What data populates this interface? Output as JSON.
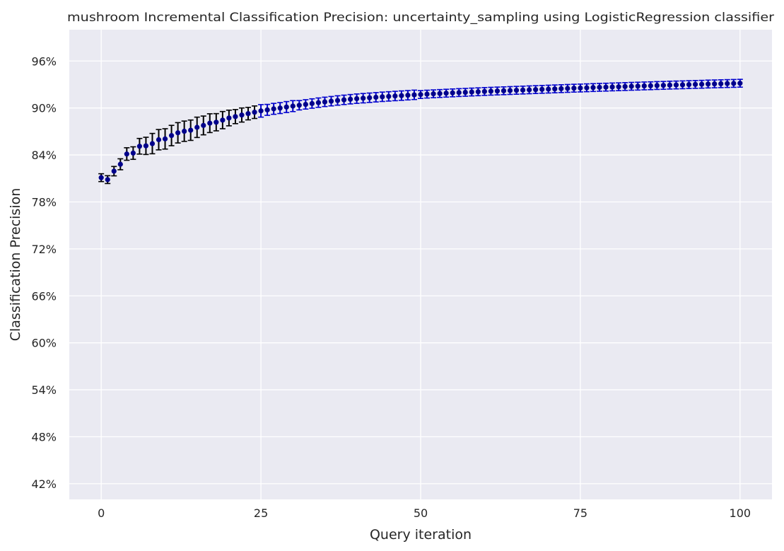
{
  "chart_data": {
    "type": "scatter",
    "title": "mushroom Incremental Classification Precision: uncertainty_sampling using LogisticRegression classifier",
    "xlabel": "Query iteration",
    "ylabel": "Classification Precision",
    "xlim": [
      -5,
      105
    ],
    "ylim": [
      0.4,
      1.0
    ],
    "x_ticks": [
      0,
      25,
      50,
      75,
      100
    ],
    "x_tick_labels": [
      "0",
      "25",
      "50",
      "75",
      "100"
    ],
    "y_ticks": [
      0.42,
      0.48,
      0.54,
      0.6,
      0.66,
      0.72,
      0.78,
      0.84,
      0.9,
      0.96
    ],
    "y_tick_labels": [
      "42%",
      "48%",
      "54%",
      "60%",
      "66%",
      "72%",
      "78%",
      "84%",
      "90%",
      "96%"
    ],
    "grid": true,
    "colors": {
      "background": "#eaeaf2",
      "grid": "#ffffff",
      "marker": "#00008b",
      "errorbar_early": "#000000",
      "errorbar_late": "#0000cd"
    },
    "series": [
      {
        "x": [
          0,
          1,
          2,
          3,
          4,
          5,
          6,
          7,
          8,
          9,
          10,
          11,
          12,
          13,
          14,
          15,
          16,
          17,
          18,
          19,
          20,
          21,
          22,
          23,
          24,
          25,
          26,
          27,
          28,
          29,
          30,
          31,
          32,
          33,
          34,
          35,
          36,
          37,
          38,
          39,
          40,
          41,
          42,
          43,
          44,
          45,
          46,
          47,
          48,
          49,
          50,
          51,
          52,
          53,
          54,
          55,
          56,
          57,
          58,
          59,
          60,
          61,
          62,
          63,
          64,
          65,
          66,
          67,
          68,
          69,
          70,
          71,
          72,
          73,
          74,
          75,
          76,
          77,
          78,
          79,
          80,
          81,
          82,
          83,
          84,
          85,
          86,
          87,
          88,
          89,
          90,
          91,
          92,
          93,
          94,
          95,
          96,
          97,
          98,
          99,
          100
        ],
        "y": [
          0.811,
          0.8085,
          0.8193,
          0.8281,
          0.8412,
          0.8424,
          0.8511,
          0.8516,
          0.8545,
          0.8595,
          0.8605,
          0.8648,
          0.8683,
          0.8703,
          0.8716,
          0.8753,
          0.8777,
          0.8806,
          0.8818,
          0.8845,
          0.8872,
          0.889,
          0.891,
          0.8928,
          0.8946,
          0.8963,
          0.8976,
          0.8989,
          0.8999,
          0.9012,
          0.9024,
          0.9035,
          0.9046,
          0.9057,
          0.9068,
          0.9078,
          0.9087,
          0.9096,
          0.9104,
          0.9112,
          0.9119,
          0.9125,
          0.9131,
          0.9137,
          0.9143,
          0.9148,
          0.9153,
          0.9158,
          0.9163,
          0.9168,
          0.9172,
          0.9177,
          0.9181,
          0.9185,
          0.9189,
          0.9193,
          0.9197,
          0.92,
          0.9204,
          0.9207,
          0.9211,
          0.9214,
          0.9217,
          0.922,
          0.9223,
          0.9226,
          0.9229,
          0.9232,
          0.9235,
          0.9238,
          0.9241,
          0.9244,
          0.9247,
          0.925,
          0.9253,
          0.9255,
          0.9258,
          0.9261,
          0.9264,
          0.9266,
          0.9269,
          0.9271,
          0.9274,
          0.9277,
          0.9279,
          0.9282,
          0.9284,
          0.9287,
          0.9289,
          0.9292,
          0.9294,
          0.9296,
          0.9299,
          0.9301,
          0.9303,
          0.9306,
          0.9308,
          0.931,
          0.9312,
          0.9314,
          0.9316
        ],
        "err": [
          0.005,
          0.005,
          0.006,
          0.007,
          0.008,
          0.008,
          0.01,
          0.011,
          0.013,
          0.013,
          0.013,
          0.013,
          0.013,
          0.013,
          0.013,
          0.013,
          0.012,
          0.012,
          0.011,
          0.011,
          0.01,
          0.009,
          0.009,
          0.008,
          0.008,
          0.008,
          0.007,
          0.007,
          0.007,
          0.007,
          0.007,
          0.006,
          0.006,
          0.006,
          0.006,
          0.006,
          0.006,
          0.006,
          0.006,
          0.006,
          0.006,
          0.006,
          0.006,
          0.006,
          0.006,
          0.006,
          0.006,
          0.006,
          0.006,
          0.006,
          0.005,
          0.005,
          0.005,
          0.005,
          0.005,
          0.005,
          0.005,
          0.005,
          0.005,
          0.005,
          0.005,
          0.005,
          0.005,
          0.005,
          0.005,
          0.005,
          0.005,
          0.005,
          0.005,
          0.005,
          0.005,
          0.005,
          0.005,
          0.005,
          0.005,
          0.005,
          0.005,
          0.005,
          0.005,
          0.005,
          0.005,
          0.005,
          0.005,
          0.005,
          0.005,
          0.005,
          0.005,
          0.005,
          0.005,
          0.005,
          0.005,
          0.005,
          0.005,
          0.005,
          0.005,
          0.005,
          0.005,
          0.005,
          0.005,
          0.005,
          0.005
        ]
      }
    ]
  }
}
